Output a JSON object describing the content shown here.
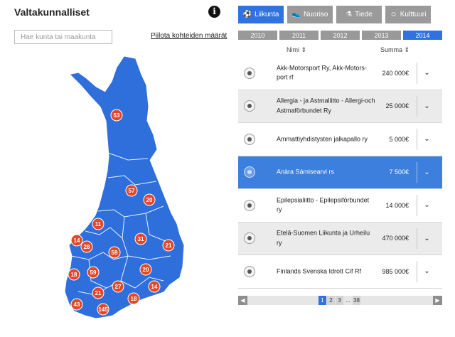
{
  "header": {
    "title": "Valtakunnalliset",
    "info_icon": "info-icon"
  },
  "search": {
    "placeholder": "Hae kunta tai maakunta"
  },
  "hide_link": "Piilota kohteiden määrät",
  "categories": [
    {
      "label": "Liikunta",
      "icon": "soccer-ball-icon",
      "active": true
    },
    {
      "label": "Nuoriso",
      "icon": "sneaker-icon",
      "active": false
    },
    {
      "label": "Tiede",
      "icon": "flask-icon",
      "active": false
    },
    {
      "label": "Kulttuuri",
      "icon": "theater-masks-icon",
      "active": false
    }
  ],
  "years": [
    {
      "label": "2010",
      "active": false
    },
    {
      "label": "2011",
      "active": false
    },
    {
      "label": "2012",
      "active": false
    },
    {
      "label": "2013",
      "active": false
    },
    {
      "label": "2014",
      "active": true
    }
  ],
  "table": {
    "col_name": "Nimi",
    "col_amount": "Summa",
    "rows": [
      {
        "name": "Akk-Motorsport Ry, Akk-Motors-port rf",
        "amount": "240 000€",
        "selected": false
      },
      {
        "name": "Allergia - ja Astmaliitto - Allergi-och Astmaförbundet Ry",
        "amount": "25 000€",
        "selected": false
      },
      {
        "name": "Ammattiyhdistysten jalkapallo ry",
        "amount": "5 000€",
        "selected": false
      },
      {
        "name": "Anàra Sámisearvi rs",
        "amount": "7 500€",
        "selected": true
      },
      {
        "name": "Epilepsialiitto - Epilepsiförbundet ry",
        "amount": "14 000€",
        "selected": false
      },
      {
        "name": "Etelä-Suomen Liikunta ja Urheilu ry",
        "amount": "470 000€",
        "selected": false
      },
      {
        "name": "Finlands Svenska Idrott Cif Rf",
        "amount": "985 000€",
        "selected": false
      }
    ]
  },
  "pager": {
    "pages": [
      "1",
      "2",
      "3",
      "...",
      "38"
    ],
    "active": "1"
  },
  "map": {
    "fill": "#2f6fdc",
    "badge_color": "#e2472a",
    "badges": [
      "53",
      "57",
      "20",
      "11",
      "14",
      "28",
      "31",
      "59",
      "21",
      "18",
      "59",
      "20",
      "14",
      "21",
      "27",
      "18",
      "43",
      "145"
    ]
  }
}
